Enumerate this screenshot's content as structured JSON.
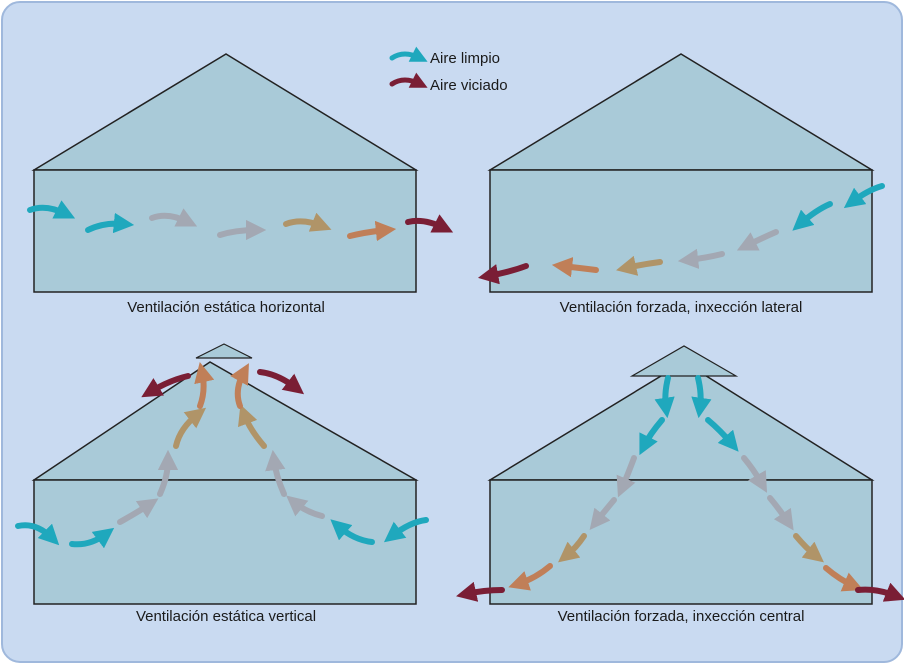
{
  "legend": {
    "clean_label": "Aire limpio",
    "stale_label": "Aire viciado"
  },
  "panels": [
    {
      "id": "horizontal",
      "label": "Ventilación estática horizontal"
    },
    {
      "id": "lateral",
      "label": "Ventilación forzada, inxección lateral"
    },
    {
      "id": "vertical",
      "label": "Ventilación estática vertical"
    },
    {
      "id": "central",
      "label": "Ventilación forzada, inxección central"
    }
  ],
  "colors": {
    "background": "#c9daf1",
    "frame_border": "#9fb8dc",
    "building_fill": "#a9cad8",
    "building_stroke": "#222222",
    "clean_air": "#1fa8bd",
    "gray_air": "#a3a8b3",
    "tan_air": "#b09468",
    "orange_air": "#c07f58",
    "stale_air": "#7a1e35"
  }
}
